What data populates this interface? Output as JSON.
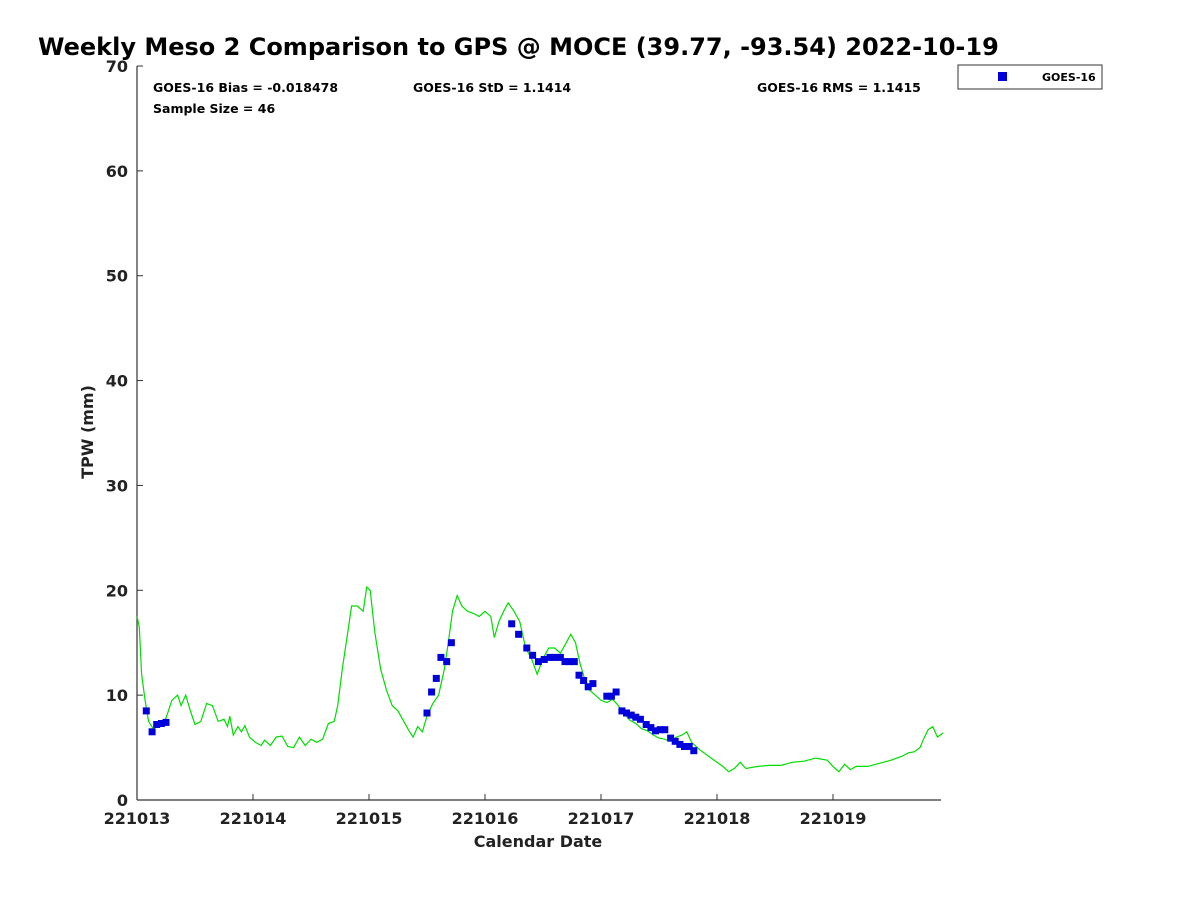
{
  "chart_data": {
    "type": "scatter",
    "title": "Weekly Meso 2 Comparison to GPS @ MOCE (39.77, -93.54) 2022-10-19",
    "xlabel": "Calendar Date",
    "ylabel": "TPW (mm)",
    "xlim": [
      0,
      6.95
    ],
    "ylim": [
      0,
      70
    ],
    "x_tick_values": [
      0,
      1,
      2,
      3,
      4,
      5,
      6
    ],
    "x_tick_labels": [
      "221013",
      "221014",
      "221015",
      "221016",
      "221017",
      "221018",
      "221019"
    ],
    "y_ticks": [
      0,
      10,
      20,
      30,
      40,
      50,
      60,
      70
    ],
    "grid": false,
    "legend_position": "top-right, outside plot",
    "stats": {
      "bias": "GOES-16 Bias = -0.018478",
      "std": "GOES-16 StD = 1.1414",
      "rms": "GOES-16 RMS = 1.1415",
      "sample": "Sample Size = 46"
    },
    "series": [
      {
        "name": "GOES-16",
        "kind": "markers",
        "marker": "square",
        "color": "#0000dd",
        "points": [
          [
            0.08,
            8.5
          ],
          [
            0.13,
            6.5
          ],
          [
            0.17,
            7.2
          ],
          [
            0.21,
            7.3
          ],
          [
            0.25,
            7.4
          ],
          [
            2.5,
            8.3
          ],
          [
            2.54,
            10.3
          ],
          [
            2.58,
            11.6
          ],
          [
            2.62,
            13.6
          ],
          [
            2.67,
            13.2
          ],
          [
            2.71,
            15.0
          ],
          [
            3.23,
            16.8
          ],
          [
            3.29,
            15.8
          ],
          [
            3.36,
            14.5
          ],
          [
            3.41,
            13.8
          ],
          [
            3.46,
            13.2
          ],
          [
            3.51,
            13.4
          ],
          [
            3.56,
            13.6
          ],
          [
            3.6,
            13.6
          ],
          [
            3.65,
            13.6
          ],
          [
            3.69,
            13.2
          ],
          [
            3.73,
            13.2
          ],
          [
            3.77,
            13.2
          ],
          [
            3.81,
            11.9
          ],
          [
            3.85,
            11.4
          ],
          [
            3.89,
            10.8
          ],
          [
            3.93,
            11.1
          ],
          [
            4.05,
            9.9
          ],
          [
            4.09,
            9.9
          ],
          [
            4.13,
            10.3
          ],
          [
            4.18,
            8.5
          ],
          [
            4.22,
            8.3
          ],
          [
            4.26,
            8.1
          ],
          [
            4.3,
            7.9
          ],
          [
            4.34,
            7.7
          ],
          [
            4.39,
            7.2
          ],
          [
            4.43,
            6.9
          ],
          [
            4.47,
            6.6
          ],
          [
            4.51,
            6.7
          ],
          [
            4.55,
            6.7
          ],
          [
            4.6,
            5.9
          ],
          [
            4.64,
            5.6
          ],
          [
            4.68,
            5.3
          ],
          [
            4.72,
            5.1
          ],
          [
            4.76,
            5.1
          ],
          [
            4.8,
            4.7
          ]
        ]
      },
      {
        "kind": "line",
        "color": "#00dd00",
        "points": [
          [
            0,
            17.5
          ],
          [
            0.02,
            16.5
          ],
          [
            0.04,
            12.0
          ],
          [
            0.07,
            9.5
          ],
          [
            0.1,
            7.5
          ],
          [
            0.14,
            6.8
          ],
          [
            0.2,
            7.2
          ],
          [
            0.25,
            7.8
          ],
          [
            0.3,
            9.5
          ],
          [
            0.35,
            10.0
          ],
          [
            0.38,
            9.0
          ],
          [
            0.42,
            10.0
          ],
          [
            0.46,
            8.5
          ],
          [
            0.5,
            7.2
          ],
          [
            0.55,
            7.5
          ],
          [
            0.6,
            9.2
          ],
          [
            0.65,
            9.0
          ],
          [
            0.7,
            7.5
          ],
          [
            0.75,
            7.7
          ],
          [
            0.78,
            7.0
          ],
          [
            0.8,
            8.0
          ],
          [
            0.83,
            6.2
          ],
          [
            0.87,
            7.0
          ],
          [
            0.9,
            6.5
          ],
          [
            0.93,
            7.1
          ],
          [
            0.97,
            6.0
          ],
          [
            1.02,
            5.5
          ],
          [
            1.07,
            5.2
          ],
          [
            1.1,
            5.7
          ],
          [
            1.15,
            5.2
          ],
          [
            1.2,
            6.0
          ],
          [
            1.25,
            6.1
          ],
          [
            1.3,
            5.1
          ],
          [
            1.35,
            5.0
          ],
          [
            1.4,
            6.0
          ],
          [
            1.45,
            5.2
          ],
          [
            1.5,
            5.8
          ],
          [
            1.55,
            5.5
          ],
          [
            1.6,
            5.8
          ],
          [
            1.65,
            7.3
          ],
          [
            1.7,
            7.5
          ],
          [
            1.73,
            9.0
          ],
          [
            1.77,
            12.5
          ],
          [
            1.81,
            15.5
          ],
          [
            1.85,
            18.5
          ],
          [
            1.9,
            18.5
          ],
          [
            1.95,
            18.0
          ],
          [
            1.98,
            20.3
          ],
          [
            2.01,
            20.0
          ],
          [
            2.05,
            16.0
          ],
          [
            2.1,
            12.5
          ],
          [
            2.15,
            10.5
          ],
          [
            2.2,
            9.0
          ],
          [
            2.25,
            8.5
          ],
          [
            2.3,
            7.5
          ],
          [
            2.35,
            6.5
          ],
          [
            2.38,
            6.0
          ],
          [
            2.42,
            7.0
          ],
          [
            2.46,
            6.5
          ],
          [
            2.5,
            8.0
          ],
          [
            2.55,
            9.2
          ],
          [
            2.6,
            10.0
          ],
          [
            2.65,
            12.5
          ],
          [
            2.69,
            15.5
          ],
          [
            2.72,
            18.0
          ],
          [
            2.76,
            19.5
          ],
          [
            2.8,
            18.5
          ],
          [
            2.85,
            18.0
          ],
          [
            2.9,
            17.8
          ],
          [
            2.95,
            17.5
          ],
          [
            3.0,
            18.0
          ],
          [
            3.05,
            17.5
          ],
          [
            3.08,
            15.5
          ],
          [
            3.12,
            17.0
          ],
          [
            3.16,
            18.0
          ],
          [
            3.2,
            18.8
          ],
          [
            3.25,
            18.0
          ],
          [
            3.3,
            17.0
          ],
          [
            3.35,
            14.5
          ],
          [
            3.4,
            13.5
          ],
          [
            3.45,
            12.0
          ],
          [
            3.5,
            13.5
          ],
          [
            3.55,
            14.5
          ],
          [
            3.6,
            14.5
          ],
          [
            3.65,
            14.0
          ],
          [
            3.7,
            15.0
          ],
          [
            3.74,
            15.8
          ],
          [
            3.78,
            15.0
          ],
          [
            3.82,
            13.0
          ],
          [
            3.86,
            11.5
          ],
          [
            3.9,
            10.5
          ],
          [
            3.95,
            10.0
          ],
          [
            4.0,
            9.5
          ],
          [
            4.05,
            9.3
          ],
          [
            4.1,
            9.6
          ],
          [
            4.15,
            9.0
          ],
          [
            4.2,
            8.2
          ],
          [
            4.25,
            7.6
          ],
          [
            4.3,
            7.3
          ],
          [
            4.35,
            6.8
          ],
          [
            4.4,
            6.6
          ],
          [
            4.45,
            6.2
          ],
          [
            4.5,
            5.9
          ],
          [
            4.55,
            5.8
          ],
          [
            4.6,
            5.6
          ],
          [
            4.65,
            6.0
          ],
          [
            4.7,
            6.2
          ],
          [
            4.74,
            6.5
          ],
          [
            4.78,
            5.5
          ],
          [
            4.85,
            4.8
          ],
          [
            4.95,
            4.0
          ],
          [
            5.05,
            3.2
          ],
          [
            5.1,
            2.7
          ],
          [
            5.15,
            3.0
          ],
          [
            5.2,
            3.6
          ],
          [
            5.25,
            3.0
          ],
          [
            5.35,
            3.2
          ],
          [
            5.45,
            3.3
          ],
          [
            5.55,
            3.3
          ],
          [
            5.65,
            3.6
          ],
          [
            5.75,
            3.7
          ],
          [
            5.85,
            4.0
          ],
          [
            5.95,
            3.8
          ],
          [
            6.0,
            3.2
          ],
          [
            6.05,
            2.7
          ],
          [
            6.1,
            3.4
          ],
          [
            6.15,
            2.9
          ],
          [
            6.2,
            3.2
          ],
          [
            6.3,
            3.2
          ],
          [
            6.4,
            3.5
          ],
          [
            6.5,
            3.8
          ],
          [
            6.6,
            4.2
          ],
          [
            6.65,
            4.5
          ],
          [
            6.7,
            4.6
          ],
          [
            6.75,
            5.0
          ],
          [
            6.78,
            5.8
          ],
          [
            6.82,
            6.7
          ],
          [
            6.86,
            7.0
          ],
          [
            6.9,
            6.0
          ],
          [
            6.95,
            6.4
          ]
        ]
      }
    ]
  }
}
